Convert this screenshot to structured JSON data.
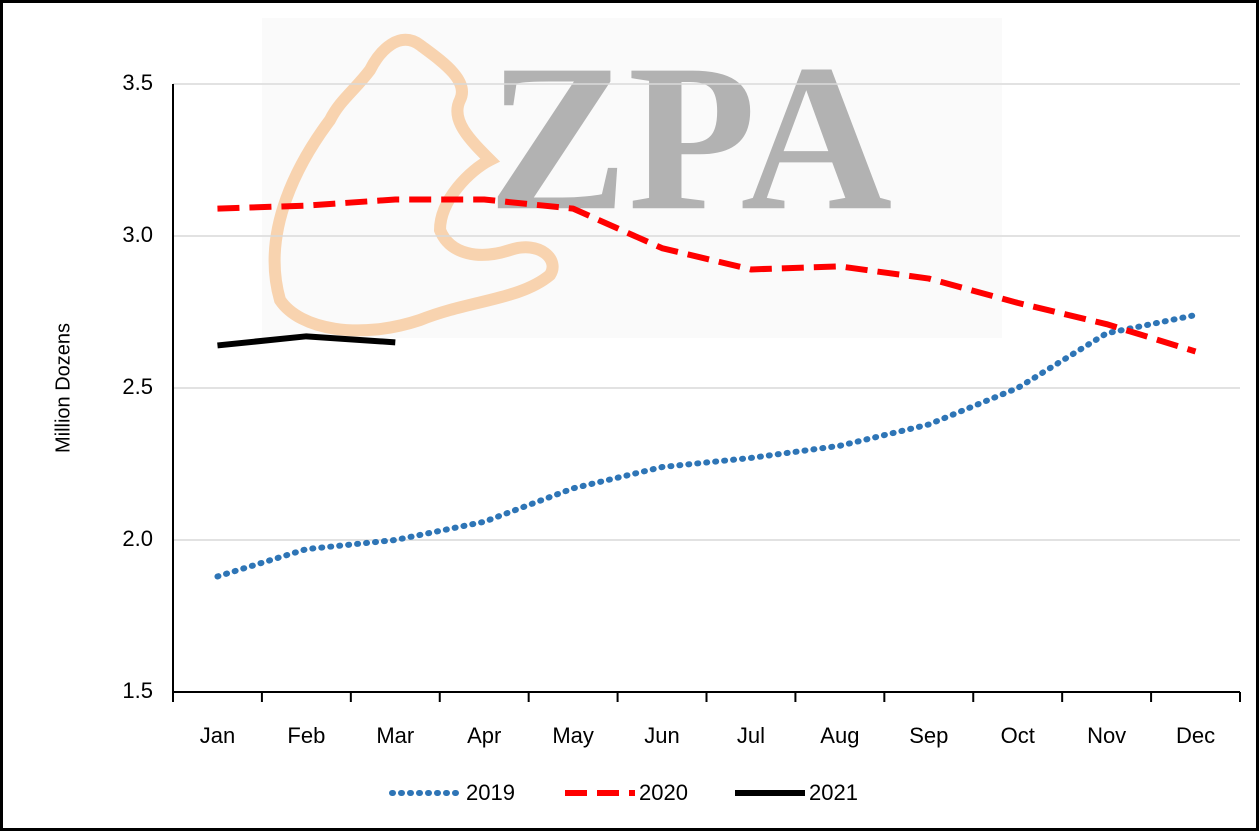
{
  "chart_data": {
    "type": "line",
    "watermark": "ZPA",
    "y_label": "Million Dozens",
    "categories": [
      "Jan",
      "Feb",
      "Mar",
      "Apr",
      "May",
      "Jun",
      "Jul",
      "Aug",
      "Sep",
      "Oct",
      "Nov",
      "Dec"
    ],
    "series": [
      {
        "name": "2019",
        "color": "#2e75b6",
        "style": "dotted",
        "values": [
          1.88,
          1.97,
          2.0,
          2.06,
          2.17,
          2.24,
          2.27,
          2.31,
          2.38,
          2.5,
          2.68,
          2.74
        ]
      },
      {
        "name": "2020",
        "color": "#ff0000",
        "style": "dashed",
        "values": [
          3.09,
          3.1,
          3.12,
          3.12,
          3.09,
          2.96,
          2.89,
          2.9,
          2.86,
          2.78,
          2.71,
          2.62
        ]
      },
      {
        "name": "2021",
        "color": "#000000",
        "style": "solid",
        "values": [
          2.64,
          2.67,
          2.65,
          null,
          null,
          null,
          null,
          null,
          null,
          null,
          null,
          null
        ]
      }
    ],
    "ylim": [
      1.5,
      3.5
    ],
    "yticks": [
      1.5,
      {
        "value": 2,
        "label": "2.0"
      },
      2.5,
      {
        "value": 3,
        "label": "3.0"
      },
      3.5
    ],
    "grid": true,
    "legend": "bottom"
  }
}
